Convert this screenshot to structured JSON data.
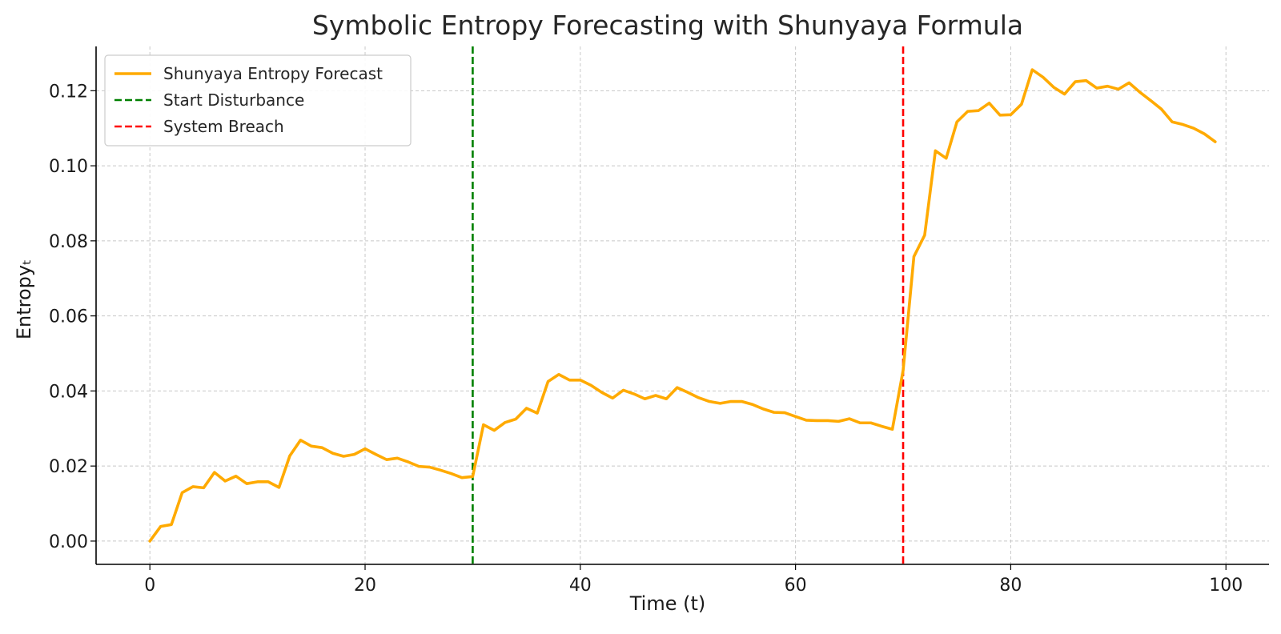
{
  "chart_data": {
    "type": "line",
    "title": "Symbolic Entropy Forecasting with Shunyaya Formula",
    "xlabel": "Time (t)",
    "ylabel": "Entropyₜ",
    "xlim": [
      -5,
      104
    ],
    "ylim": [
      -0.0062,
      0.1318
    ],
    "x_ticks": [
      0,
      20,
      40,
      60,
      80,
      100
    ],
    "x_tick_labels": [
      "0",
      "20",
      "40",
      "60",
      "80",
      "100"
    ],
    "y_ticks": [
      0.0,
      0.02,
      0.04,
      0.06,
      0.08,
      0.1,
      0.12
    ],
    "y_tick_labels": [
      "0.00",
      "0.02",
      "0.04",
      "0.06",
      "0.08",
      "0.10",
      "0.12"
    ],
    "grid": true,
    "legend_position": "top-left",
    "series": [
      {
        "name": "Shunyaya Entropy Forecast",
        "color": "#ffaa00",
        "style": "solid",
        "x": [
          0,
          1,
          2,
          3,
          4,
          5,
          6,
          7,
          8,
          9,
          10,
          11,
          12,
          13,
          14,
          15,
          16,
          17,
          18,
          19,
          20,
          21,
          22,
          23,
          24,
          25,
          26,
          27,
          28,
          29,
          30,
          31,
          32,
          33,
          34,
          35,
          36,
          37,
          38,
          39,
          40,
          41,
          42,
          43,
          44,
          45,
          46,
          47,
          48,
          49,
          50,
          51,
          52,
          53,
          54,
          55,
          56,
          57,
          58,
          59,
          60,
          61,
          62,
          63,
          64,
          65,
          66,
          67,
          68,
          69,
          70,
          71,
          72,
          73,
          74,
          75,
          76,
          77,
          78,
          79,
          80,
          81,
          82,
          83,
          84,
          85,
          86,
          87,
          88,
          89,
          90,
          91,
          92,
          93,
          94,
          95,
          96,
          97,
          98,
          99
        ],
        "values": [
          0.0,
          0.0039,
          0.0044,
          0.0129,
          0.0145,
          0.0142,
          0.0183,
          0.016,
          0.0173,
          0.0153,
          0.0158,
          0.0158,
          0.0143,
          0.0227,
          0.0269,
          0.0253,
          0.0249,
          0.0234,
          0.0226,
          0.0231,
          0.0246,
          0.0231,
          0.0217,
          0.0221,
          0.0211,
          0.0199,
          0.0197,
          0.0189,
          0.018,
          0.0169,
          0.0172,
          0.031,
          0.0295,
          0.0316,
          0.0325,
          0.0354,
          0.0341,
          0.0425,
          0.0444,
          0.0429,
          0.0429,
          0.0415,
          0.0396,
          0.0381,
          0.0402,
          0.0392,
          0.0379,
          0.0388,
          0.0379,
          0.0409,
          0.0396,
          0.0382,
          0.0372,
          0.0367,
          0.0372,
          0.0372,
          0.0364,
          0.0352,
          0.0343,
          0.0342,
          0.0332,
          0.0322,
          0.0321,
          0.0321,
          0.0319,
          0.0326,
          0.0315,
          0.0315,
          0.0306,
          0.0298,
          0.0455,
          0.0758,
          0.0815,
          0.104,
          0.102,
          0.1117,
          0.1145,
          0.1147,
          0.1167,
          0.1135,
          0.1136,
          0.1164,
          0.1256,
          0.1236,
          0.1209,
          0.1191,
          0.1224,
          0.1227,
          0.1207,
          0.1212,
          0.1204,
          0.1221,
          0.1196,
          0.1174,
          0.1151,
          0.1117,
          0.111,
          0.11,
          0.1085,
          0.1064
        ]
      },
      {
        "name": "Start Disturbance",
        "color": "#008000",
        "style": "dashed",
        "x_value": 30
      },
      {
        "name": "System Breach",
        "color": "#ff0000",
        "style": "dashed",
        "x_value": 70
      }
    ]
  }
}
